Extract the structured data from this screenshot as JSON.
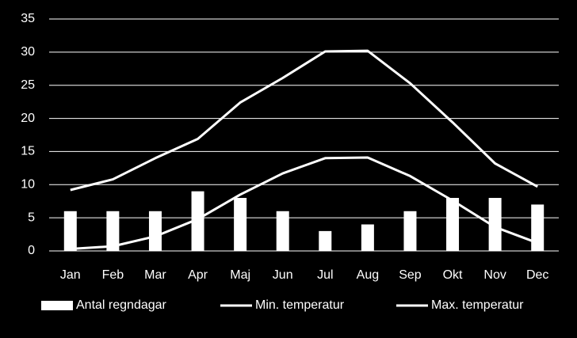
{
  "chart_data": {
    "type": "bar-line",
    "categories": [
      "Jan",
      "Feb",
      "Mar",
      "Apr",
      "Maj",
      "Jun",
      "Jul",
      "Aug",
      "Sep",
      "Okt",
      "Nov",
      "Dec"
    ],
    "series": [
      {
        "name": "Antal regndagar",
        "type": "bar",
        "color": "#ffffff",
        "values": [
          6,
          6,
          6,
          9,
          8,
          6,
          3,
          4,
          6,
          8,
          8,
          7
        ]
      },
      {
        "name": "Min. temperatur",
        "type": "line",
        "color": "#ffffff",
        "values": [
          0.3,
          0.7,
          2.2,
          4.8,
          8.5,
          11.7,
          14,
          14.1,
          11.3,
          7.6,
          3.6,
          1.2
        ]
      },
      {
        "name": "Max. temperatur",
        "type": "line",
        "color": "#ffffff",
        "values": [
          9.2,
          10.8,
          14,
          16.9,
          22.4,
          26.1,
          30.1,
          30.2,
          25.3,
          19.4,
          13.2,
          9.7
        ]
      }
    ],
    "ylim": [
      0,
      35
    ],
    "yticks": [
      0,
      5,
      10,
      15,
      20,
      25,
      30,
      35
    ],
    "grid": true,
    "legend": "bottom"
  }
}
